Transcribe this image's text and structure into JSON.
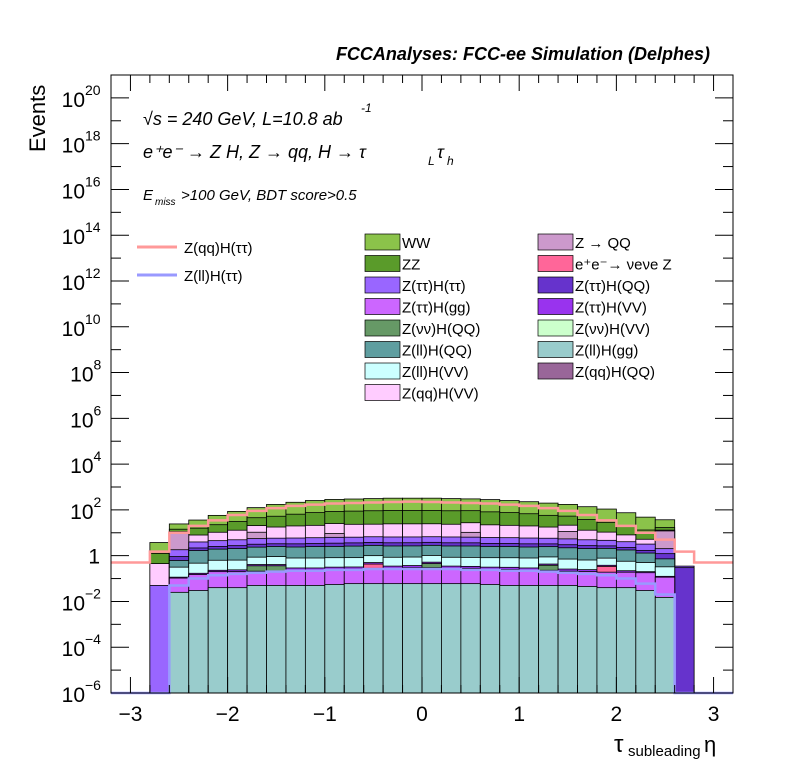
{
  "chart_data": {
    "type": "bar",
    "stacked": true,
    "title": "FCCAnalyses: FCC-ee Simulation (Delphes)",
    "ylabel": "Events",
    "xlabel_main": "τ",
    "xlabel_sub": "subleading",
    "xlabel_tail": "η",
    "yscale": "log",
    "xlim": [
      -3.2,
      3.2
    ],
    "ylim_exp": [
      -6,
      21
    ],
    "x_ticks": [
      "−3",
      "−2",
      "−1",
      "0",
      "1",
      "2",
      "3"
    ],
    "x_tick_values": [
      -3,
      -2,
      -1,
      0,
      1,
      2,
      3
    ],
    "y_ticks": [
      {
        "exp": -6,
        "base": "10",
        "sup": "−6"
      },
      {
        "exp": -4,
        "base": "10",
        "sup": "−4"
      },
      {
        "exp": -2,
        "base": "10",
        "sup": "−2"
      },
      {
        "exp": 0,
        "base": "1",
        "sup": ""
      },
      {
        "exp": 2,
        "base": "10",
        "sup": "2"
      },
      {
        "exp": 4,
        "base": "10",
        "sup": "4"
      },
      {
        "exp": 6,
        "base": "10",
        "sup": "6"
      },
      {
        "exp": 8,
        "base": "10",
        "sup": "8"
      },
      {
        "exp": 10,
        "base": "10",
        "sup": "10"
      },
      {
        "exp": 12,
        "base": "10",
        "sup": "12"
      },
      {
        "exp": 14,
        "base": "10",
        "sup": "14"
      },
      {
        "exp": 16,
        "base": "10",
        "sup": "16"
      },
      {
        "exp": 18,
        "base": "10",
        "sup": "18"
      },
      {
        "exp": 20,
        "base": "10",
        "sup": "20"
      }
    ],
    "annotations": {
      "energy": "√s = 240 GeV, L=10.8 ab",
      "energy_sup": "-1",
      "process": "e⁺e⁻ → Z H, Z → qq, H → τ",
      "process_sub1": "L",
      "process_tau2": "τ",
      "process_sub2": "h",
      "cuts_e": "E",
      "cuts_sub": "miss",
      "cuts_rest": ">100 GeV, BDT score>0.5"
    },
    "bin_edges": [
      -3.2,
      -2.8,
      -2.6,
      -2.4,
      -2.2,
      -2.0,
      -1.8,
      -1.6,
      -1.4,
      -1.2,
      -1.0,
      -0.8,
      -0.6,
      -0.4,
      -0.2,
      0.0,
      0.2,
      0.4,
      0.6,
      0.8,
      1.0,
      1.2,
      1.4,
      1.6,
      1.8,
      2.0,
      2.2,
      2.4,
      2.6,
      2.8,
      3.2
    ],
    "stack_order_bottom_to_top": [
      "Z(ll)H(gg)",
      "Z(ττ)H(gg)",
      "Z(νν)H(QQ)",
      "e⁺e⁻→ νeνe Z",
      "Z(qq)H(QQ)",
      "Z(ττ)H(VV)",
      "Z(ll)H(VV)",
      "Z(ll)H(QQ)",
      "Z(ττ)H(QQ)",
      "Z(ττ)H(ττ)",
      "Z → QQ",
      "Z(qq)H(VV)",
      "ZZ",
      "WW"
    ],
    "stack_series": [
      {
        "name": "WW",
        "color": "#8bc34a",
        "values": [
          0,
          2.5,
          10,
          20,
          35,
          55,
          80,
          120,
          150,
          180,
          200,
          210,
          220,
          230,
          230,
          230,
          220,
          210,
          200,
          180,
          160,
          140,
          120,
          100,
          80,
          55,
          35,
          20,
          0,
          0
        ]
      },
      {
        "name": "ZZ",
        "color": "#5a9b2a",
        "values": [
          0,
          0.8,
          3,
          8,
          12,
          18,
          25,
          35,
          45,
          55,
          60,
          65,
          68,
          70,
          70,
          70,
          68,
          65,
          60,
          55,
          48,
          40,
          32,
          25,
          18,
          12,
          8,
          4,
          0,
          0
        ]
      },
      {
        "name": "Z(qq)H(VV)",
        "color": "#ffccff",
        "values": [
          0,
          0.4,
          1.5,
          4,
          6,
          8,
          10,
          12,
          14,
          15,
          16,
          17,
          17,
          18,
          18,
          18,
          17,
          17,
          16,
          15,
          14,
          12,
          10,
          8,
          6,
          4,
          2,
          1,
          0,
          0
        ]
      },
      {
        "name": "Z → QQ",
        "color": "#cc99cc",
        "values": [
          0,
          0,
          8,
          0,
          0,
          0,
          5,
          0,
          0,
          0,
          3,
          0,
          0,
          0,
          0,
          0,
          0,
          4,
          0,
          0,
          0,
          0,
          6,
          0,
          0,
          0,
          0,
          10,
          0,
          0
        ]
      },
      {
        "name": "Z(ττ)H(ττ)",
        "color": "#9966ff",
        "values": [
          0,
          0.05,
          0.9,
          1.8,
          2,
          2.2,
          2.4,
          2.5,
          2.6,
          2.7,
          2.8,
          2.8,
          2.9,
          2.9,
          2.9,
          2.9,
          2.9,
          2.8,
          2.8,
          2.7,
          2.6,
          2.5,
          2.4,
          2.2,
          2.0,
          1.8,
          1.5,
          0.8,
          0.05,
          0
        ]
      },
      {
        "name": "Z(ττ)H(QQ)",
        "color": "#6633cc",
        "values": [
          0,
          0,
          0.3,
          0.5,
          0.6,
          0.7,
          0.8,
          0.8,
          0.9,
          0.9,
          1,
          1,
          1,
          1,
          1,
          1,
          1,
          1,
          0.9,
          0.9,
          0.9,
          0.8,
          0.8,
          0.7,
          0.6,
          0.5,
          0.4,
          0.5,
          0.3,
          0
        ]
      },
      {
        "name": "Z(ll)H(QQ)",
        "color": "#5f9ea0",
        "values": [
          0,
          0,
          0.3,
          1.2,
          1.3,
          1.4,
          1.5,
          1.6,
          1.6,
          1.7,
          1.7,
          1.8,
          1.8,
          1.8,
          1.8,
          1.8,
          1.8,
          1.8,
          1.7,
          1.7,
          1.6,
          1.6,
          1.5,
          1.4,
          1.3,
          1.2,
          0.8,
          0.4,
          0,
          0
        ]
      },
      {
        "name": "Z(ll)H(VV)",
        "color": "#ccffff",
        "values": [
          0,
          0,
          0.2,
          0.3,
          0.4,
          0.4,
          0.45,
          0.5,
          0.5,
          0.5,
          0.5,
          0.5,
          0.5,
          0.5,
          0.5,
          0.5,
          0.5,
          0.5,
          0.5,
          0.5,
          0.5,
          0.45,
          0.45,
          0.4,
          0.4,
          0.35,
          0.3,
          0.2,
          0,
          0
        ]
      },
      {
        "name": "Z(ττ)H(VV)",
        "color": "#9933ee",
        "values": [
          0,
          0,
          0.01,
          0.02,
          0.03,
          0.04,
          0.05,
          0.05,
          0.06,
          0.06,
          0.06,
          0.06,
          0.07,
          0.07,
          0.07,
          0.07,
          0.07,
          0.06,
          0.06,
          0.06,
          0.06,
          0.05,
          0.05,
          0.04,
          0.04,
          0.03,
          0.02,
          0.01,
          0,
          0
        ]
      },
      {
        "name": "Z(qq)H(QQ)",
        "color": "#996699",
        "values": [
          0,
          0,
          0,
          0,
          0,
          0,
          0,
          0,
          0,
          0,
          0,
          0,
          0,
          0,
          0,
          0,
          0,
          0,
          0,
          0,
          0,
          0,
          0,
          0.0003,
          0,
          0,
          0,
          0,
          0,
          0
        ]
      },
      {
        "name": "e⁺e⁻→ νeνe Z",
        "color": "#ff6699",
        "values": [
          0,
          0,
          0,
          0,
          0,
          0,
          0,
          0,
          0,
          0,
          0,
          0,
          0.15,
          0,
          0,
          0,
          0,
          0,
          0,
          0,
          0,
          0,
          0,
          0,
          0.15,
          0,
          0,
          0,
          0,
          0
        ]
      },
      {
        "name": "Z(νν)H(QQ)",
        "color": "#669966",
        "values": [
          0,
          0,
          0,
          0,
          0,
          0,
          0.15,
          0.15,
          0,
          0,
          0,
          0,
          0,
          0,
          0,
          0.15,
          0,
          0,
          0,
          0,
          0,
          0.15,
          0,
          0,
          0,
          0,
          0,
          0,
          0,
          0
        ]
      },
      {
        "name": "Z(ττ)H(gg)",
        "color": "#cc66ff",
        "values": [
          0,
          0,
          0.08,
          0.12,
          0.16,
          0.16,
          0.16,
          0.16,
          0.18,
          0.18,
          0.2,
          0.2,
          0.22,
          0.22,
          0.24,
          0.24,
          0.22,
          0.22,
          0.2,
          0.2,
          0.18,
          0.18,
          0.16,
          0.16,
          0.15,
          0.15,
          0.15,
          0.1,
          0,
          0
        ]
      },
      {
        "name": "Z(ll)H(gg)",
        "color": "#99cccc",
        "values": [
          0,
          0,
          0.025,
          0.03,
          0.04,
          0.04,
          0.05,
          0.05,
          0.05,
          0.05,
          0.055,
          0.06,
          0.06,
          0.06,
          0.06,
          0.06,
          0.06,
          0.06,
          0.055,
          0.05,
          0.05,
          0.05,
          0.05,
          0.045,
          0.04,
          0.04,
          0.03,
          0.015,
          0,
          0
        ]
      }
    ],
    "line_series": [
      {
        "name": "Z(qq)H(ττ)",
        "color": "#ff9999",
        "values": [
          0.5,
          1.5,
          10,
          20,
          35,
          60,
          90,
          120,
          150,
          170,
          190,
          200,
          210,
          220,
          230,
          220,
          210,
          200,
          190,
          170,
          150,
          120,
          90,
          60,
          35,
          20,
          10,
          5,
          1.5,
          0.5
        ]
      },
      {
        "name": "Z(ll)H(ττ)",
        "color": "#9999ff",
        "values": [
          1e-06,
          1e-06,
          0.05,
          0.1,
          0.14,
          0.16,
          0.18,
          0.2,
          0.22,
          0.22,
          0.24,
          0.24,
          0.26,
          0.26,
          0.26,
          0.26,
          0.26,
          0.24,
          0.24,
          0.22,
          0.22,
          0.2,
          0.18,
          0.16,
          0.14,
          0.1,
          0.06,
          0.02,
          1e-06,
          1e-06
        ]
      }
    ],
    "legend": {
      "left": [
        {
          "label": "Z(qq)H(ττ)",
          "color": "#ff9999",
          "kind": "line"
        },
        {
          "label": "Z(ll)H(ττ)",
          "color": "#9999ff",
          "kind": "line"
        }
      ],
      "col1": [
        {
          "label": "WW",
          "color": "#8bc34a"
        },
        {
          "label": "ZZ",
          "color": "#5a9b2a"
        },
        {
          "label": "Z(ττ)H(ττ)",
          "color": "#9966ff"
        },
        {
          "label": "Z(ττ)H(gg)",
          "color": "#cc66ff"
        },
        {
          "label": "Z(νν)H(QQ)",
          "color": "#669966"
        },
        {
          "label": "Z(ll)H(QQ)",
          "color": "#5f9ea0"
        },
        {
          "label": "Z(ll)H(VV)",
          "color": "#ccffff"
        },
        {
          "label": "Z(qq)H(VV)",
          "color": "#ffccff"
        }
      ],
      "col2": [
        {
          "label": "Z → QQ",
          "color": "#cc99cc"
        },
        {
          "label": "e⁺e⁻→ νeνe Z",
          "color": "#ff6699"
        },
        {
          "label": "Z(ττ)H(QQ)",
          "color": "#6633cc"
        },
        {
          "label": "Z(ττ)H(VV)",
          "color": "#9933ee"
        },
        {
          "label": "Z(νν)H(VV)",
          "color": "#ccffcc"
        },
        {
          "label": "Z(ll)H(gg)",
          "color": "#99cccc"
        },
        {
          "label": "Z(qq)H(QQ)",
          "color": "#996699"
        }
      ]
    }
  }
}
